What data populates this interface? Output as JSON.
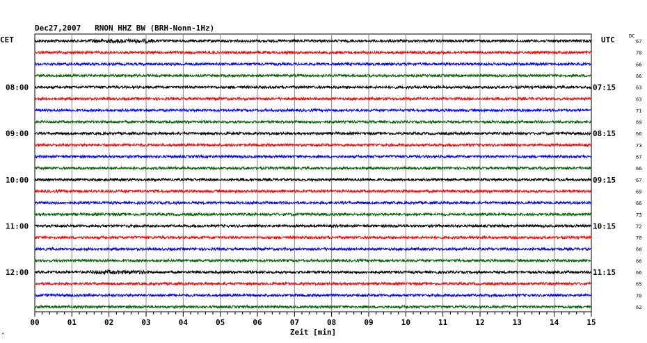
{
  "chart_data": {
    "type": "line",
    "title": "Dec27,2007   RNON HHZ BW (BRH-Nonn-1Hz)",
    "left_header": "CET",
    "right_header": "UTC",
    "dc_header": "DC",
    "xlabel": "Zeit [min]",
    "corner_mark": "^",
    "x_ticks": [
      "00",
      "01",
      "02",
      "03",
      "04",
      "05",
      "06",
      "07",
      "08",
      "09",
      "10",
      "11",
      "12",
      "13",
      "14",
      "15"
    ],
    "xlim": [
      0,
      15
    ],
    "trace_count": 24,
    "trace_colors": [
      "#000000",
      "#ff0000",
      "#0000ff",
      "#006400"
    ],
    "grid": true,
    "left_hour_labels": [
      {
        "trace": 4,
        "label": "08:00"
      },
      {
        "trace": 8,
        "label": "09:00"
      },
      {
        "trace": 12,
        "label": "10:00"
      },
      {
        "trace": 16,
        "label": "11:00"
      },
      {
        "trace": 20,
        "label": "12:00"
      }
    ],
    "right_hour_labels": [
      {
        "trace": 4,
        "label": "07:15"
      },
      {
        "trace": 8,
        "label": "08:15"
      },
      {
        "trace": 12,
        "label": "09:15"
      },
      {
        "trace": 16,
        "label": "10:15"
      },
      {
        "trace": 20,
        "label": "11:15"
      }
    ],
    "dc_values": [
      "67",
      "70",
      "66",
      "66",
      "63",
      "63",
      "71",
      "69",
      "66",
      "73",
      "67",
      "66",
      "67",
      "69",
      "66",
      "73",
      "72",
      "70",
      "68",
      "66",
      "66",
      "65",
      "70",
      "62"
    ]
  }
}
